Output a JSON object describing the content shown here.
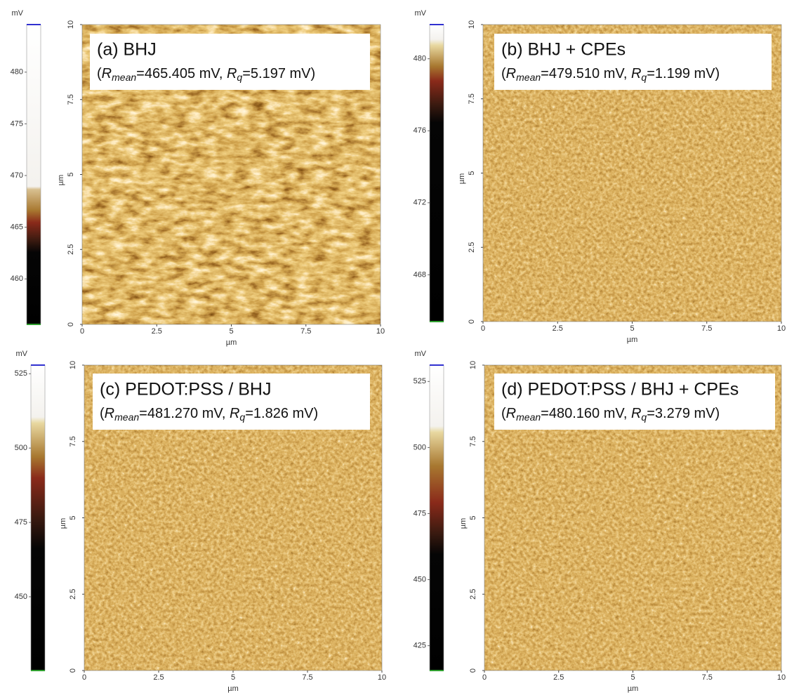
{
  "panels": [
    {
      "label": "(a) BHJ",
      "stats": [
        "(",
        "R",
        "mean",
        "=465.405 mV, ",
        "R",
        "q",
        "=5.197 mV)"
      ],
      "x_label": "µm",
      "y_label": "µm",
      "xlim": [
        0,
        10
      ],
      "ylim": [
        0,
        10
      ],
      "xticks": [
        0,
        2.5,
        5,
        7.5,
        10
      ],
      "yticks": [
        0,
        2.5,
        5,
        7.5,
        10
      ],
      "colorbar": {
        "unit": "mV",
        "lim": [
          455.6,
          484.6
        ],
        "ticks": [
          460,
          465,
          470,
          475,
          480
        ]
      }
    },
    {
      "label": "(b) BHJ + CPEs",
      "stats": [
        "(",
        "R",
        "mean",
        "=479.510 mV, ",
        "R",
        "q",
        "=1.199 mV)"
      ],
      "x_label": "µm",
      "y_label": "µm",
      "xlim": [
        0,
        10
      ],
      "ylim": [
        0,
        10
      ],
      "xticks": [
        0,
        2.5,
        5,
        7.5,
        10
      ],
      "yticks": [
        0,
        2.5,
        5,
        7.5,
        10
      ],
      "colorbar": {
        "unit": "mV",
        "lim": [
          465.4,
          481.9
        ],
        "ticks": [
          468,
          472,
          476,
          480
        ]
      }
    },
    {
      "label": "(c) PEDOT:PSS / BHJ",
      "stats": [
        "(",
        "R",
        "mean",
        "=481.270 mV, ",
        "R",
        "q",
        "=1.826 mV)"
      ],
      "x_label": "µm",
      "y_label": "µm",
      "xlim": [
        0,
        10
      ],
      "ylim": [
        0,
        10
      ],
      "xticks": [
        0,
        2.5,
        5,
        7.5,
        10
      ],
      "yticks": [
        0,
        2.5,
        5,
        7.5,
        10
      ],
      "colorbar": {
        "unit": "mV",
        "lim": [
          425.2,
          527.9
        ],
        "ticks": [
          450,
          475,
          500,
          525
        ]
      }
    },
    {
      "label": "(d) PEDOT:PSS / BHJ + CPEs",
      "stats": [
        "(",
        "R",
        "mean",
        "=480.160 mV, ",
        "R",
        "q",
        "=3.279 mV)"
      ],
      "x_label": "µm",
      "y_label": "µm",
      "xlim": [
        0,
        10
      ],
      "ylim": [
        0,
        10
      ],
      "xticks": [
        0,
        2.5,
        5,
        7.5,
        10
      ],
      "yticks": [
        0,
        2.5,
        5,
        7.5,
        10
      ],
      "colorbar": {
        "unit": "mV",
        "lim": [
          415.6,
          531.2
        ],
        "ticks": [
          425,
          450,
          475,
          500,
          525
        ]
      }
    }
  ]
}
